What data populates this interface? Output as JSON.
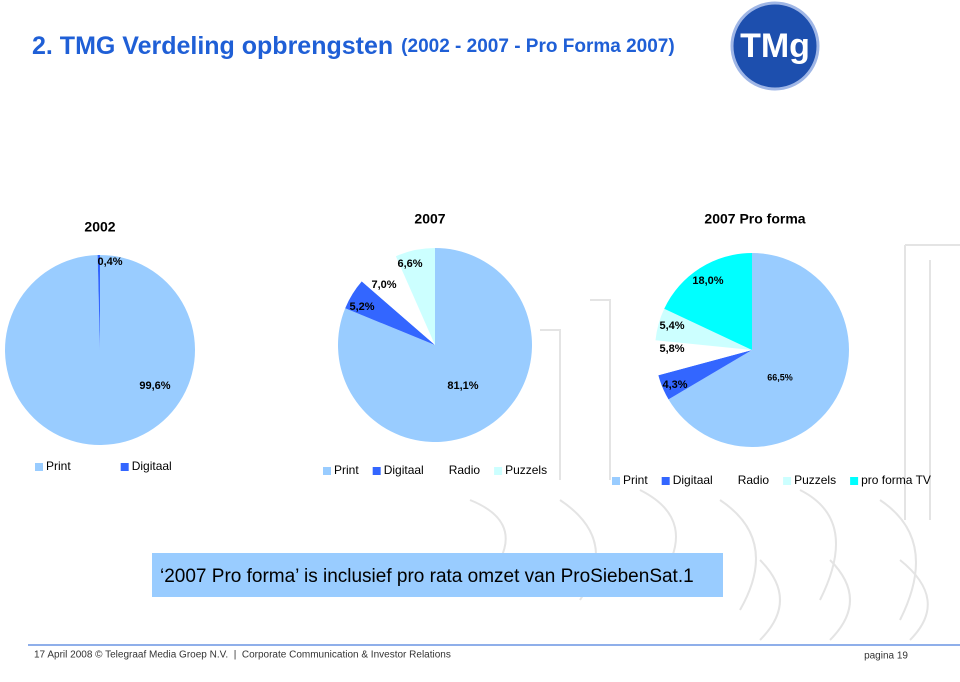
{
  "slide": {
    "title": "2. TMG Verdeling opbrengsten",
    "subtitle": "(2002 - 2007 - Pro Forma 2007)",
    "logo": "TMg",
    "note": "‘2007 Pro forma’ is inclusief pro rata omzet van ProSiebenSat.1",
    "footer": "17 April 2008 © Telegraaf Media Groep N.V.  |  Corporate Communication & Investor Relations",
    "page": "pagina 19"
  },
  "chart_data": [
    {
      "type": "pie",
      "title": "2002",
      "categories": [
        "Print",
        "Digitaal"
      ],
      "values": [
        99.6,
        0.4
      ],
      "value_labels": [
        "99,6%",
        "0,4%"
      ],
      "colors": [
        "#99ccff",
        "#3366ff"
      ]
    },
    {
      "type": "pie",
      "title": "2007",
      "categories": [
        "Print",
        "Digitaal",
        "Radio",
        "Puzzels"
      ],
      "values": [
        81.1,
        5.2,
        7.0,
        6.6
      ],
      "value_labels": [
        "81,1%",
        "5,2%",
        "7,0%",
        "6,6%"
      ],
      "colors": [
        "#99ccff",
        "#3366ff",
        "#ffffff",
        "#ccffff"
      ]
    },
    {
      "type": "pie",
      "title": "2007 Pro forma",
      "categories": [
        "Print",
        "Digitaal",
        "Radio",
        "Puzzels",
        "pro forma TV"
      ],
      "values": [
        66.5,
        4.3,
        5.8,
        5.4,
        18.0
      ],
      "value_labels": [
        "66,5%",
        "4,3%",
        "5,8%",
        "5,4%",
        "18,0%"
      ],
      "colors": [
        "#99ccff",
        "#3366ff",
        "#ffffff",
        "#ccffff",
        "#00ffff"
      ]
    }
  ]
}
